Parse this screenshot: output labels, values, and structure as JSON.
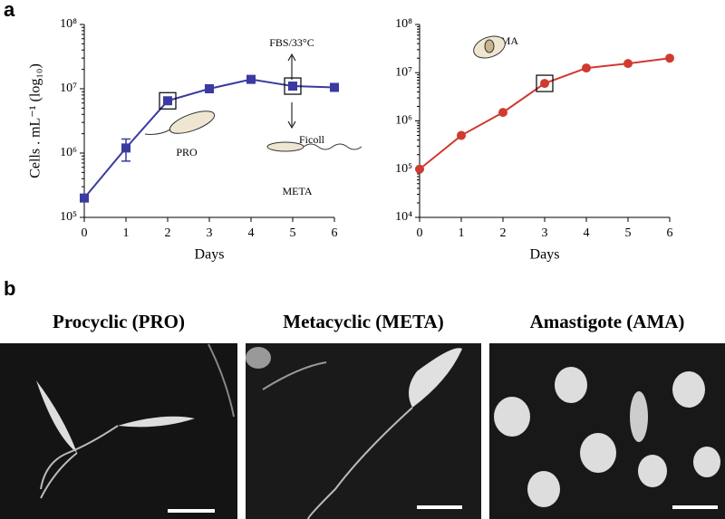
{
  "panel_a": {
    "label": "a"
  },
  "panel_b": {
    "label": "b",
    "titles": [
      "Procyclic (PRO)",
      "Metacyclic (META)",
      "Amastigote (AMA)"
    ]
  },
  "chart_data": [
    {
      "type": "line",
      "xlabel": "Days",
      "ylabel": "Cells . mL⁻¹ (log₁₀)",
      "log_y": true,
      "x": [
        0,
        1,
        2,
        3,
        4,
        5,
        6
      ],
      "xlim": [
        0,
        6
      ],
      "xticks": [
        0,
        1,
        2,
        3,
        4,
        5,
        6
      ],
      "ylim": [
        100000,
        100000000
      ],
      "yticks": [
        {
          "value": 100000,
          "label": "10⁵"
        },
        {
          "value": 1000000,
          "label": "10⁶"
        },
        {
          "value": 10000000,
          "label": "10⁷"
        },
        {
          "value": 100000000,
          "label": "10⁸"
        }
      ],
      "series": [
        {
          "color": "#3a3aa0",
          "marker": "square",
          "values": [
            200000,
            1200000,
            6500000,
            10000000,
            14000000,
            11000000,
            10500000
          ],
          "errors": [
            null,
            450000,
            null,
            null,
            null,
            null,
            null
          ],
          "highlight": [
            2,
            5
          ]
        }
      ],
      "annotations": [
        "FBS/33°C",
        "Ficoll",
        "PRO",
        "META"
      ]
    },
    {
      "type": "line",
      "xlabel": "Days",
      "log_y": true,
      "x": [
        0,
        1,
        2,
        3,
        4,
        5,
        6
      ],
      "xlim": [
        0,
        6
      ],
      "xticks": [
        0,
        1,
        2,
        3,
        4,
        5,
        6
      ],
      "ylim": [
        10000,
        100000000
      ],
      "yticks": [
        {
          "value": 10000,
          "label": "10⁴"
        },
        {
          "value": 100000,
          "label": "10⁵"
        },
        {
          "value": 1000000,
          "label": "10⁶"
        },
        {
          "value": 10000000,
          "label": "10⁷"
        },
        {
          "value": 100000000,
          "label": "10⁸"
        }
      ],
      "series": [
        {
          "color": "#d03a30",
          "marker": "circle",
          "values": [
            100000,
            500000,
            1500000,
            6000000,
            12500000,
            15500000,
            20000000
          ],
          "errors": [
            null,
            null,
            null,
            null,
            null,
            null,
            null
          ],
          "highlight": [
            3
          ]
        }
      ],
      "annotations": [
        "AMA"
      ]
    }
  ]
}
